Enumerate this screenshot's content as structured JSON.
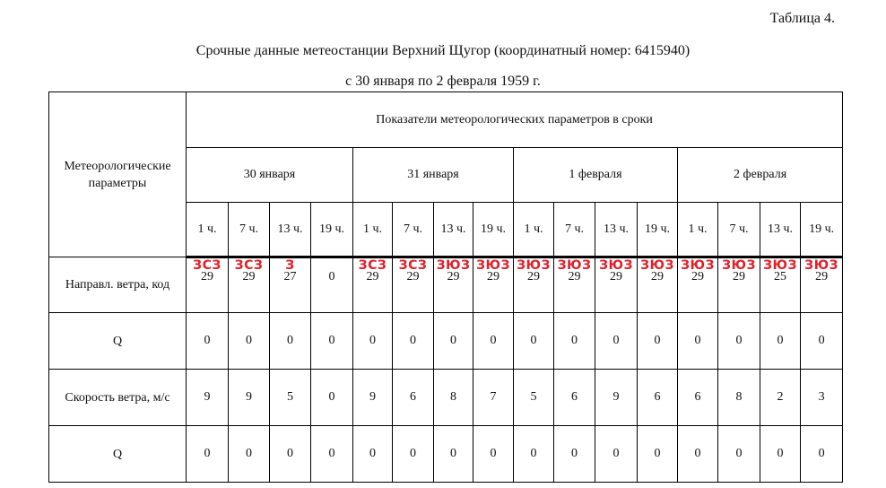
{
  "header": {
    "table_label": "Таблица 4.",
    "title": "Срочные данные метеостанции Верхний Щугор (координатный номер: 6415940)",
    "subtitle": "с 30 января по 2 февраля 1959 г."
  },
  "table": {
    "param_header": "Метеорологические параметры",
    "group_header": "Показатели метеорологических параметров в сроки",
    "days": [
      "30 января",
      "31 января",
      "1 февраля",
      "2 февраля"
    ],
    "hours": [
      "1 ч.",
      "7 ч.",
      "13 ч.",
      "19 ч.",
      "1 ч.",
      "7 ч.",
      "13 ч.",
      "19 ч.",
      "1 ч.",
      "7 ч.",
      "13 ч.",
      "19 ч.",
      "1 ч.",
      "7 ч.",
      "13 ч.",
      "19 ч."
    ],
    "rows": [
      {
        "label": "Направл. ветра, код",
        "values": [
          "29",
          "29",
          "27",
          "0",
          "29",
          "29",
          "29",
          "29",
          "29",
          "29",
          "29",
          "29",
          "29",
          "29",
          "25",
          "29"
        ],
        "marks": [
          "ЗСЗ",
          "ЗСЗ",
          "З",
          "",
          "ЗСЗ",
          "ЗСЗ",
          "ЗЮЗ",
          "ЗЮЗ",
          "ЗЮЗ",
          "ЗЮЗ",
          "ЗЮЗ",
          "ЗЮЗ",
          "ЗЮЗ",
          "ЗЮЗ",
          "ЗЮЗ",
          "ЗЮЗ"
        ]
      },
      {
        "label": "Q",
        "values": [
          "0",
          "0",
          "0",
          "0",
          "0",
          "0",
          "0",
          "0",
          "0",
          "0",
          "0",
          "0",
          "0",
          "0",
          "0",
          "0"
        ]
      },
      {
        "label": "Скорость ветра, м/с",
        "values": [
          "9",
          "9",
          "5",
          "0",
          "9",
          "6",
          "8",
          "7",
          "5",
          "6",
          "9",
          "6",
          "6",
          "8",
          "2",
          "3"
        ]
      },
      {
        "label": "Q",
        "values": [
          "0",
          "0",
          "0",
          "0",
          "0",
          "0",
          "0",
          "0",
          "0",
          "0",
          "0",
          "0",
          "0",
          "0",
          "0",
          "0"
        ]
      }
    ]
  },
  "colors": {
    "annotation": "#e0202a",
    "border": "#000000"
  }
}
